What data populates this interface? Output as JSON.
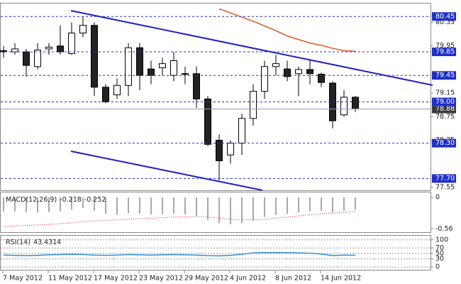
{
  "chart_data": [
    {
      "type": "candlestick",
      "categories": [
        "7 May 2012",
        null,
        null,
        null,
        "11 May 2012",
        null,
        null,
        null,
        "17 May 2012",
        null,
        null,
        null,
        "23 May 2012",
        null,
        null,
        null,
        "29 May 2012",
        null,
        null,
        null,
        "4 Jun 2012",
        null,
        null,
        null,
        "8 Jun 2012",
        null,
        null,
        null,
        "14 Jun 2012",
        null,
        null,
        null
      ],
      "open": [
        79.87,
        79.85,
        79.85,
        79.6,
        79.9,
        79.95,
        79.82,
        80.17,
        80.3,
        79.25,
        79.12,
        79.28,
        79.92,
        79.56,
        79.58,
        79.45,
        79.48,
        79.48,
        79.05,
        78.35,
        78.1,
        78.3,
        78.72,
        79.18,
        79.6,
        79.56,
        79.48,
        79.55,
        79.47,
        79.32,
        78.78,
        79.08
      ],
      "high": [
        79.95,
        80.0,
        79.9,
        80.0,
        80.0,
        80.3,
        80.35,
        80.45,
        80.35,
        79.3,
        79.4,
        80.0,
        80.0,
        79.7,
        79.75,
        79.85,
        79.6,
        79.6,
        79.1,
        78.45,
        78.35,
        78.8,
        79.3,
        79.7,
        79.8,
        79.7,
        79.6,
        79.7,
        79.5,
        79.35,
        79.2,
        79.1
      ],
      "low": [
        79.75,
        79.8,
        79.43,
        79.55,
        79.8,
        79.8,
        79.8,
        80.1,
        79.1,
        78.98,
        79.05,
        79.1,
        79.2,
        79.3,
        79.45,
        79.35,
        79.3,
        78.9,
        78.25,
        77.67,
        77.95,
        78.1,
        78.6,
        79.05,
        79.45,
        79.35,
        79.1,
        79.3,
        79.25,
        78.55,
        78.75,
        78.83
      ],
      "close": [
        79.85,
        79.9,
        79.62,
        79.88,
        79.93,
        79.85,
        80.17,
        80.3,
        79.25,
        79.0,
        79.28,
        79.92,
        79.45,
        79.45,
        79.65,
        79.7,
        79.47,
        79.05,
        78.28,
        78.0,
        78.3,
        78.72,
        79.18,
        79.6,
        79.65,
        79.43,
        79.55,
        79.48,
        79.33,
        78.68,
        79.08,
        78.88
      ],
      "ma": [
        null,
        null,
        null,
        null,
        null,
        null,
        null,
        null,
        null,
        null,
        null,
        null,
        null,
        null,
        null,
        null,
        null,
        null,
        null,
        80.58,
        80.51,
        80.44,
        80.37,
        80.29,
        80.21,
        80.12,
        80.06,
        80.0,
        79.96,
        79.91,
        79.87,
        79.86
      ],
      "ma_color": "#e2571e",
      "ylim": [
        77.5,
        80.67
      ],
      "yticks": [
        80.35,
        79.95,
        79.15,
        78.75,
        78.35,
        77.55
      ],
      "levels": [
        80.45,
        79.85,
        79.45,
        {
          "value": 79,
          "label": "79.00"
        },
        {
          "value": 78.3,
          "label": "78.30"
        },
        {
          "value": 77.7,
          "label": "77.70"
        }
      ],
      "level_color": "#1f2fc8",
      "last_price": 78.88
    },
    {
      "type": "macd",
      "title": "MACD(12,26,9)",
      "values": [
        -0.25,
        -0.25,
        -0.27,
        -0.27,
        -0.26,
        -0.25,
        -0.22,
        -0.19,
        -0.24,
        -0.29,
        -0.31,
        -0.28,
        -0.29,
        -0.3,
        -0.3,
        -0.29,
        -0.3,
        -0.33,
        -0.4,
        -0.46,
        -0.48,
        -0.46,
        -0.41,
        -0.35,
        -0.31,
        -0.29,
        -0.27,
        -0.25,
        -0.24,
        -0.27,
        -0.24,
        -0.218
      ],
      "signal": [
        -0.52,
        -0.51,
        -0.5,
        -0.49,
        -0.48,
        -0.47,
        -0.45,
        -0.43,
        -0.42,
        -0.41,
        -0.4,
        -0.39,
        -0.38,
        -0.37,
        -0.36,
        -0.35,
        -0.35,
        -0.34,
        -0.35,
        -0.37,
        -0.39,
        -0.4,
        -0.4,
        -0.39,
        -0.37,
        -0.35,
        -0.33,
        -0.31,
        -0.29,
        -0.28,
        -0.27,
        -0.252
      ],
      "color": "#a8a8a8",
      "signal_color": "#d02020",
      "ylim": [
        -0.62,
        0.09
      ],
      "yticks": [
        0,
        -0.56
      ]
    },
    {
      "type": "rsi",
      "title": "RSI(14)",
      "values": [
        44,
        43,
        42,
        43,
        45,
        46,
        47,
        46,
        44,
        43,
        44,
        46,
        45,
        44,
        45,
        46,
        45,
        44,
        42,
        41,
        43,
        47,
        52,
        53,
        53,
        53,
        52,
        51,
        48,
        42,
        44,
        43.4314
      ],
      "color": "#2f8fd8",
      "ylim": [
        -10,
        115
      ],
      "yticks": [
        100,
        70,
        50,
        30,
        0
      ],
      "grid": true
    }
  ]
}
